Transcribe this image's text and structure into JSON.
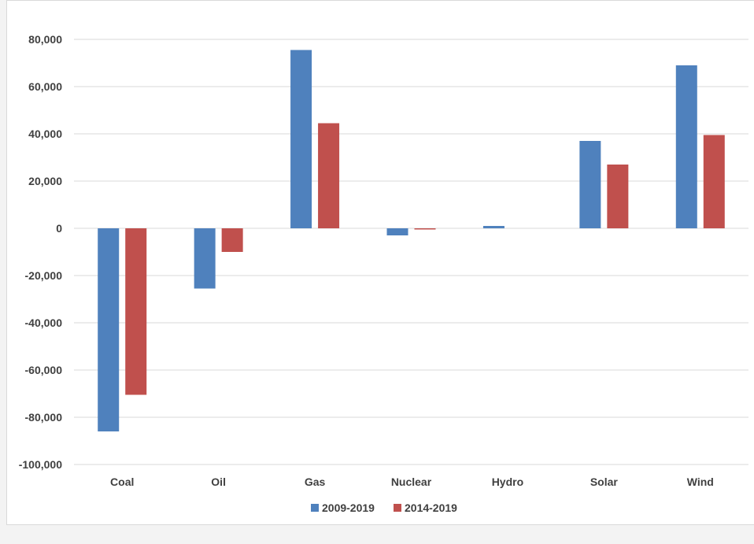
{
  "chart_data": {
    "type": "bar",
    "title": "",
    "xlabel": "",
    "ylabel": "",
    "categories": [
      "Coal",
      "Oil",
      "Gas",
      "Nuclear",
      "Hydro",
      "Solar",
      "Wind"
    ],
    "series": [
      {
        "name": "2009-2019",
        "color": "#4f81bd",
        "values": [
          -86000,
          -25500,
          75500,
          -3000,
          1000,
          37000,
          69000
        ]
      },
      {
        "name": "2014-2019",
        "color": "#c0504d",
        "values": [
          -70500,
          -10000,
          44500,
          -500,
          0,
          27000,
          39500
        ]
      }
    ],
    "ylim": [
      -100000,
      80000
    ],
    "yticks": [
      80000,
      60000,
      40000,
      20000,
      0,
      -20000,
      -40000,
      -60000,
      -80000,
      -100000
    ],
    "ytick_labels": [
      "80,000",
      "60,000",
      "40,000",
      "20,000",
      "0",
      "-20,000",
      "-40,000",
      "-60,000",
      "-80,000",
      "-100,000"
    ],
    "grid": true,
    "legend_position": "bottom-center"
  }
}
